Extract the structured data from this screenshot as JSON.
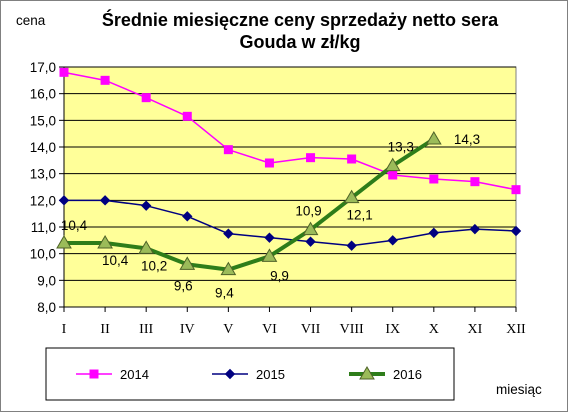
{
  "chart_data": {
    "type": "line",
    "title": "Średnie miesięczne ceny sprzedaży netto sera Gouda w zł/kg",
    "title_lines": [
      "Średnie miesięczne ceny sprzedaży netto sera",
      "Gouda w zł/kg"
    ],
    "ylabel": "cena",
    "xlabel": "miesiąc",
    "categories": [
      "I",
      "II",
      "III",
      "IV",
      "V",
      "VI",
      "VII",
      "VIII",
      "IX",
      "X",
      "XI",
      "XII"
    ],
    "ylim": [
      8.0,
      17.0
    ],
    "yticks": [
      "8,0",
      "9,0",
      "10,0",
      "11,0",
      "12,0",
      "13,0",
      "14,0",
      "15,0",
      "16,0",
      "17,0"
    ],
    "grid": true,
    "legend_position": "bottom",
    "plot_background": "#ffff99",
    "series": [
      {
        "name": "2014",
        "color": "#ff00ff",
        "marker": "square",
        "values": [
          16.8,
          16.5,
          15.85,
          15.15,
          13.9,
          13.4,
          13.6,
          13.55,
          12.95,
          12.8,
          12.7,
          12.4
        ],
        "labels": null
      },
      {
        "name": "2015",
        "color": "#000080",
        "marker": "diamond",
        "values": [
          12.0,
          12.0,
          11.8,
          11.4,
          10.75,
          10.6,
          10.45,
          10.3,
          10.5,
          10.78,
          10.92,
          10.85
        ],
        "labels": null
      },
      {
        "name": "2016",
        "color": "#2e7d1a",
        "marker": "triangle",
        "values": [
          10.4,
          10.4,
          10.2,
          9.6,
          9.4,
          9.9,
          10.9,
          12.1,
          13.3,
          14.3,
          null,
          null
        ],
        "labels": [
          "10,4",
          "10,4",
          "10,2",
          "9,6",
          "9,4",
          "9,9",
          "10,9",
          "12,1",
          "13,3",
          "14,3",
          null,
          null
        ]
      }
    ]
  }
}
